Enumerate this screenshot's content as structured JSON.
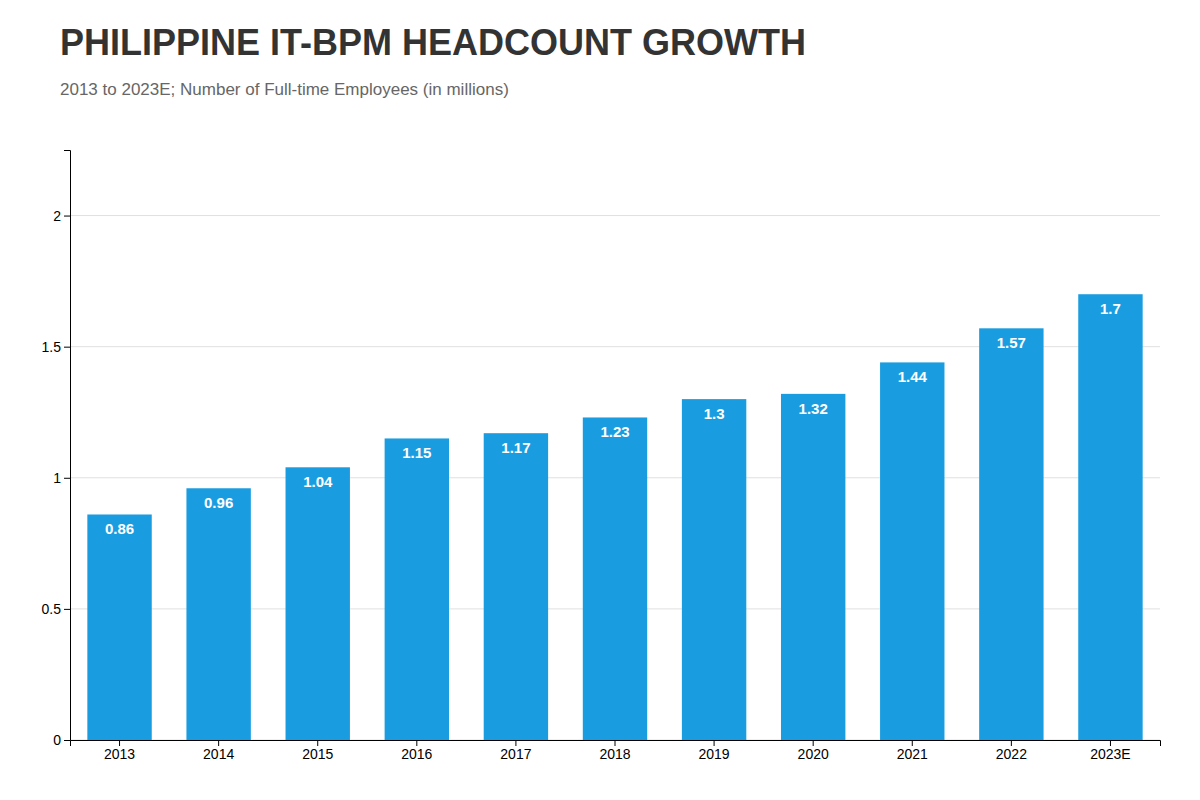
{
  "chart_data": {
    "type": "bar",
    "title": "PHILIPPINE IT-BPM HEADCOUNT GROWTH",
    "subtitle": "2013 to 2023E; Number of Full-time Employees (in millions)",
    "categories": [
      "2013",
      "2014",
      "2015",
      "2016",
      "2017",
      "2018",
      "2019",
      "2020",
      "2021",
      "2022",
      "2023E"
    ],
    "values": [
      0.86,
      0.96,
      1.04,
      1.15,
      1.17,
      1.23,
      1.3,
      1.32,
      1.44,
      1.57,
      1.7
    ],
    "color": "#1a9de0",
    "ylim": [
      0,
      2.25
    ],
    "yticks": [
      0,
      0.5,
      1,
      1.5,
      2
    ],
    "grid": true,
    "data_labels": true
  }
}
